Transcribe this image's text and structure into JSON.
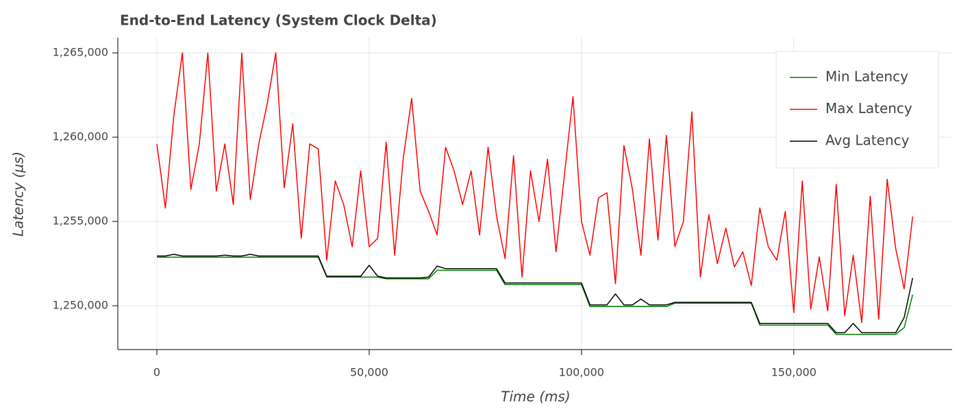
{
  "chart_data": {
    "type": "line",
    "title": "End-to-End Latency (System Clock Delta)",
    "x_label": "Time (ms)",
    "y_label": "Latency (µs)",
    "x": [
      0,
      2000,
      4000,
      6000,
      8000,
      10000,
      12000,
      14000,
      16000,
      18000,
      20000,
      22000,
      24000,
      26000,
      28000,
      30000,
      32000,
      34000,
      36000,
      38000,
      40000,
      42000,
      44000,
      46000,
      48000,
      50000,
      52000,
      54000,
      56000,
      58000,
      60000,
      62000,
      64000,
      66000,
      68000,
      70000,
      72000,
      74000,
      76000,
      78000,
      80000,
      82000,
      84000,
      86000,
      88000,
      90000,
      92000,
      94000,
      96000,
      98000,
      100000,
      102000,
      104000,
      106000,
      108000,
      110000,
      112000,
      114000,
      116000,
      118000,
      120000,
      122000,
      124000,
      126000,
      128000,
      130000,
      132000,
      134000,
      136000,
      138000,
      140000,
      142000,
      144000,
      146000,
      148000,
      150000,
      152000,
      154000,
      156000,
      158000,
      160000,
      162000,
      164000,
      166000,
      168000,
      170000,
      172000,
      174000,
      176000,
      178000
    ],
    "series": [
      {
        "name": "Min Latency",
        "color": "#008000",
        "values": [
          1252880,
          1252880,
          1252880,
          1252880,
          1252880,
          1252880,
          1252880,
          1252880,
          1252880,
          1252880,
          1252880,
          1252880,
          1252880,
          1252880,
          1252880,
          1252880,
          1252880,
          1252880,
          1252880,
          1252880,
          1251700,
          1251700,
          1251700,
          1251700,
          1251700,
          1251700,
          1251700,
          1251600,
          1251600,
          1251600,
          1251600,
          1251600,
          1251600,
          1252100,
          1252100,
          1252100,
          1252100,
          1252100,
          1252100,
          1252100,
          1252100,
          1251250,
          1251250,
          1251250,
          1251250,
          1251250,
          1251250,
          1251250,
          1251250,
          1251250,
          1251250,
          1249950,
          1249950,
          1249950,
          1249950,
          1249950,
          1249950,
          1249950,
          1249950,
          1249950,
          1249950,
          1250150,
          1250150,
          1250150,
          1250150,
          1250150,
          1250150,
          1250150,
          1250150,
          1250150,
          1250150,
          1248850,
          1248850,
          1248850,
          1248850,
          1248850,
          1248850,
          1248850,
          1248850,
          1248850,
          1248300,
          1248300,
          1248300,
          1248300,
          1248300,
          1248300,
          1248300,
          1248300,
          1248700,
          1250650
        ]
      },
      {
        "name": "Max Latency",
        "color": "#ff0000",
        "values": [
          1259600,
          1255800,
          1261300,
          1265000,
          1256900,
          1259600,
          1265000,
          1256800,
          1259600,
          1256000,
          1265000,
          1256300,
          1259600,
          1262000,
          1265000,
          1257000,
          1260800,
          1254000,
          1259600,
          1259300,
          1252700,
          1257400,
          1256000,
          1253500,
          1258000,
          1253500,
          1254000,
          1259700,
          1253000,
          1258700,
          1262300,
          1256800,
          1255600,
          1254200,
          1259400,
          1258000,
          1256000,
          1258000,
          1254200,
          1259400,
          1255300,
          1252800,
          1258900,
          1251700,
          1258000,
          1255000,
          1258700,
          1253200,
          1257800,
          1262400,
          1255000,
          1253000,
          1256400,
          1256700,
          1251300,
          1259500,
          1256900,
          1253000,
          1259900,
          1253900,
          1260100,
          1253500,
          1255000,
          1261500,
          1251700,
          1255400,
          1252500,
          1254600,
          1252300,
          1253200,
          1251200,
          1255800,
          1253500,
          1252700,
          1255600,
          1249600,
          1257400,
          1249800,
          1252900,
          1249700,
          1257200,
          1249400,
          1253000,
          1249000,
          1256500,
          1249200,
          1257500,
          1253400,
          1251000,
          1255300
        ]
      },
      {
        "name": "Avg Latency",
        "color": "#000000",
        "values": [
          1252950,
          1252950,
          1253050,
          1252950,
          1252950,
          1252950,
          1252950,
          1252950,
          1253000,
          1252950,
          1252950,
          1253050,
          1252950,
          1252950,
          1252950,
          1252950,
          1252950,
          1252950,
          1252950,
          1252950,
          1251750,
          1251750,
          1251750,
          1251750,
          1251750,
          1252400,
          1251750,
          1251650,
          1251650,
          1251650,
          1251650,
          1251650,
          1251700,
          1252350,
          1252200,
          1252200,
          1252200,
          1252200,
          1252200,
          1252200,
          1252200,
          1251350,
          1251350,
          1251350,
          1251350,
          1251350,
          1251350,
          1251350,
          1251350,
          1251350,
          1251350,
          1250050,
          1250050,
          1250050,
          1250700,
          1250050,
          1250050,
          1250400,
          1250050,
          1250050,
          1250050,
          1250200,
          1250200,
          1250200,
          1250200,
          1250200,
          1250200,
          1250200,
          1250200,
          1250200,
          1250200,
          1248950,
          1248950,
          1248950,
          1248950,
          1248950,
          1248950,
          1248950,
          1248950,
          1248950,
          1248400,
          1248400,
          1248950,
          1248400,
          1248400,
          1248400,
          1248400,
          1248400,
          1249300,
          1251650
        ]
      }
    ],
    "xlim": [
      -9200,
      187300
    ],
    "ylim": [
      1247400,
      1265900
    ],
    "xticks": [
      0,
      {
        "value": 50000,
        "label": "50,000"
      },
      {
        "value": 100000,
        "label": "100,000"
      },
      {
        "value": 150000,
        "label": "150,000"
      }
    ],
    "yticks": [
      {
        "value": 1250000,
        "label": "1,250,000"
      },
      {
        "value": 1255000,
        "label": "1,255,000"
      },
      {
        "value": 1260000,
        "label": "1,260,000"
      },
      {
        "value": 1265000,
        "label": "1,265,000"
      }
    ],
    "grid": true,
    "legend": "top-right"
  }
}
